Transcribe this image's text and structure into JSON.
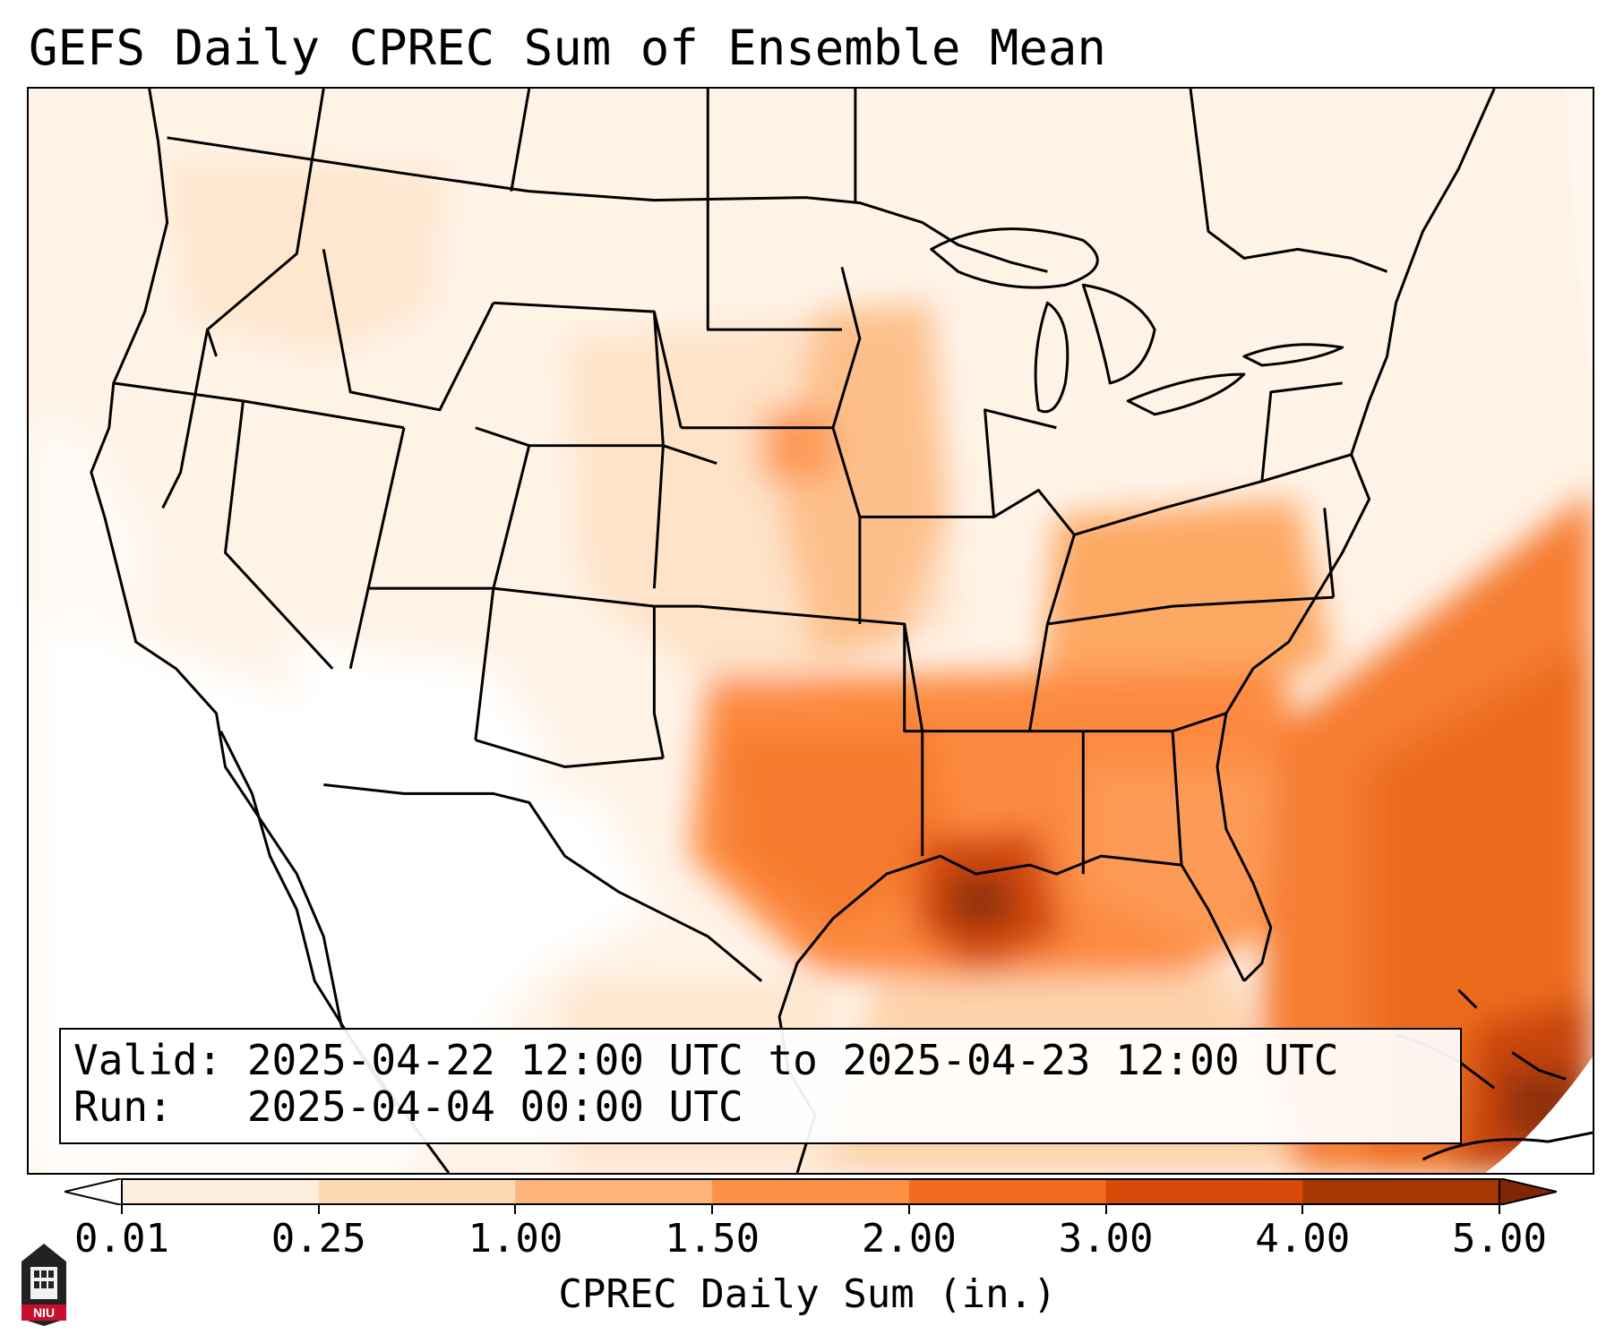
{
  "title": "GEFS Daily CPREC Sum of Ensemble Mean",
  "info": {
    "valid_line": "Valid: 2025-04-22 12:00 UTC to 2025-04-23 12:00 UTC",
    "run_line": "Run:   2025-04-04 00:00 UTC"
  },
  "colorbar": {
    "label": "CPREC Daily Sum (in.)",
    "ticks": [
      "0.01",
      "0.25",
      "1.00",
      "1.50",
      "2.00",
      "3.00",
      "4.00",
      "5.00"
    ],
    "colors": [
      "#ffffff",
      "#feeedd",
      "#fdd9b4",
      "#fdb57c",
      "#fd9146",
      "#f16c1f",
      "#d94a0a",
      "#a63603",
      "#7f2704"
    ],
    "extend": "both"
  },
  "map": {
    "region": "Contiguous United States",
    "max_region": "Lower Mississippi Valley / Louisiana",
    "secondary_max": "Atlantic Ocean near the Bahamas"
  },
  "logo": {
    "text": "NIU",
    "icon": "niu-university-logo"
  }
}
